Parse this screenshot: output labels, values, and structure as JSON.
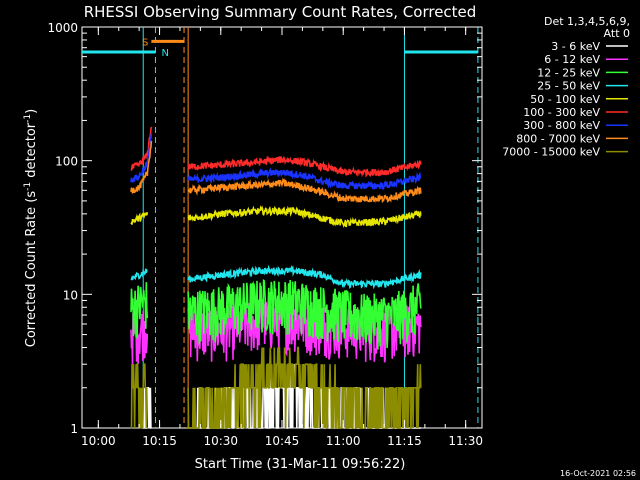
{
  "chart_data": {
    "type": "line",
    "title": "RHESSI Observing Summary Count Rates, Corrected",
    "xlabel": "Start Time (31-Mar-11 09:56:22)",
    "ylabel_main": "Corrected Count Rate (s",
    "ylabel_sup1": "-1",
    "ylabel_mid": " detector",
    "ylabel_sup2": "-1",
    "ylabel_end": ")",
    "yscale": "log",
    "ylim": [
      1,
      1000
    ],
    "xlim": [
      "09:56",
      "11:34"
    ],
    "x_ticks": [
      "10:00",
      "10:15",
      "10:30",
      "10:45",
      "11:00",
      "11:15",
      "11:30"
    ],
    "y_ticks": [
      "1",
      "10",
      "100",
      "1000"
    ],
    "legend_header": [
      "Det 1,3,4,5,6,9,",
      "Att 0"
    ],
    "legend_position": "right",
    "timestamp": "16-Oct-2021 02:56",
    "gaps": [
      [
        "10:14",
        "10:22"
      ],
      [
        "11:19",
        "11:30"
      ]
    ],
    "flags": [
      {
        "label": "S",
        "color": "#ff8c1a",
        "y": 780,
        "from": "10:13",
        "to": "10:21"
      },
      {
        "label": "N",
        "color": "#22e6ee",
        "y": 650,
        "from": "09:56",
        "to": "10:14"
      },
      {
        "label": "",
        "color": "#22e6ee",
        "y": 650,
        "from": "11:15",
        "to": "11:33"
      }
    ],
    "vlines": [
      {
        "t": "10:11",
        "color": "#22e6ee",
        "style": "solid"
      },
      {
        "t": "10:14",
        "color": "#22e6ee",
        "style": "dashed"
      },
      {
        "t": "10:21",
        "color": "#ff8c1a",
        "style": "dashed"
      },
      {
        "t": "10:22",
        "color": "#ff8c1a",
        "style": "solid"
      },
      {
        "t": "11:15",
        "color": "#22e6ee",
        "style": "solid"
      },
      {
        "t": "11:33",
        "color": "#22e6ee",
        "style": "dashed"
      }
    ],
    "series": [
      {
        "name": "3 - 6 keV",
        "color": "#ffffff",
        "seg1": [
          [
            "10:11",
            1
          ],
          [
            "10:12",
            1.5
          ],
          [
            "10:13",
            2
          ]
        ],
        "seg2": [
          [
            "10:22",
            1
          ],
          [
            "10:30",
            1.2
          ],
          [
            "10:35",
            1.5
          ],
          [
            "10:42",
            1.8
          ],
          [
            "10:50",
            1.8
          ],
          [
            "10:55",
            1.5
          ],
          [
            "11:00",
            1.3
          ],
          [
            "11:10",
            1.1
          ],
          [
            "11:19",
            1
          ]
        ]
      },
      {
        "name": "6 - 12 keV",
        "color": "#ff33ff",
        "seg1": [
          [
            "10:08",
            5
          ],
          [
            "10:10",
            5.5
          ],
          [
            "10:12",
            6
          ]
        ],
        "seg2": [
          [
            "10:22",
            5.5
          ],
          [
            "10:30",
            5.5
          ],
          [
            "10:40",
            6.5
          ],
          [
            "10:48",
            6.5
          ],
          [
            "10:55",
            6
          ],
          [
            "11:05",
            5.5
          ],
          [
            "11:12",
            5.5
          ],
          [
            "11:19",
            6
          ]
        ]
      },
      {
        "name": "12 - 25 keV",
        "color": "#33ff33",
        "seg1": [
          [
            "10:08",
            8
          ],
          [
            "10:10",
            8.5
          ],
          [
            "10:12",
            9
          ]
        ],
        "seg2": [
          [
            "10:22",
            7.5
          ],
          [
            "10:30",
            8
          ],
          [
            "10:40",
            9
          ],
          [
            "10:48",
            9
          ],
          [
            "10:55",
            8
          ],
          [
            "11:05",
            7
          ],
          [
            "11:12",
            7
          ],
          [
            "11:19",
            8.5
          ]
        ]
      },
      {
        "name": "25 - 50 keV",
        "color": "#22e6ee",
        "seg1": [
          [
            "10:08",
            13
          ],
          [
            "10:10",
            14
          ],
          [
            "10:12",
            15
          ]
        ],
        "seg2": [
          [
            "10:22",
            13
          ],
          [
            "10:30",
            14
          ],
          [
            "10:40",
            15
          ],
          [
            "10:48",
            15
          ],
          [
            "10:55",
            14
          ],
          [
            "11:00",
            12
          ],
          [
            "11:10",
            12
          ],
          [
            "11:19",
            14
          ]
        ]
      },
      {
        "name": "50 - 100 keV",
        "color": "#e6e600",
        "seg1": [
          [
            "10:08",
            35
          ],
          [
            "10:10",
            37
          ],
          [
            "10:12",
            40
          ]
        ],
        "seg2": [
          [
            "10:22",
            37
          ],
          [
            "10:30",
            40
          ],
          [
            "10:40",
            42
          ],
          [
            "10:48",
            42
          ],
          [
            "10:55",
            37
          ],
          [
            "11:00",
            34
          ],
          [
            "11:10",
            35
          ],
          [
            "11:19",
            40
          ]
        ]
      },
      {
        "name": "100 - 300 keV",
        "color": "#ff2a2a",
        "seg1": [
          [
            "10:08",
            88
          ],
          [
            "10:10",
            93
          ],
          [
            "10:12",
            110
          ],
          [
            "10:13",
            180
          ]
        ],
        "seg2": [
          [
            "10:22",
            90
          ],
          [
            "10:30",
            93
          ],
          [
            "10:40",
            98
          ],
          [
            "10:45",
            102
          ],
          [
            "10:50",
            98
          ],
          [
            "10:55",
            90
          ],
          [
            "11:00",
            82
          ],
          [
            "11:10",
            82
          ],
          [
            "11:19",
            95
          ]
        ]
      },
      {
        "name": "300 - 800 keV",
        "color": "#1a33ff",
        "seg1": [
          [
            "10:08",
            72
          ],
          [
            "10:10",
            76
          ],
          [
            "10:12",
            95
          ],
          [
            "10:13",
            160
          ]
        ],
        "seg2": [
          [
            "10:22",
            72
          ],
          [
            "10:30",
            75
          ],
          [
            "10:40",
            80
          ],
          [
            "10:45",
            82
          ],
          [
            "10:50",
            78
          ],
          [
            "10:55",
            70
          ],
          [
            "11:00",
            65
          ],
          [
            "11:10",
            65
          ],
          [
            "11:19",
            75
          ]
        ]
      },
      {
        "name": "800 - 7000 keV",
        "color": "#ff8c1a",
        "seg1": [
          [
            "10:08",
            60
          ],
          [
            "10:10",
            63
          ],
          [
            "10:12",
            80
          ],
          [
            "10:13",
            140
          ]
        ],
        "seg2": [
          [
            "10:22",
            60
          ],
          [
            "10:30",
            63
          ],
          [
            "10:40",
            66
          ],
          [
            "10:45",
            68
          ],
          [
            "10:50",
            64
          ],
          [
            "10:55",
            58
          ],
          [
            "11:00",
            52
          ],
          [
            "11:10",
            52
          ],
          [
            "11:19",
            60
          ]
        ]
      },
      {
        "name": "7000 - 15000 keV",
        "color": "#8c8c00",
        "seg1": [
          [
            "10:08",
            2
          ],
          [
            "10:10",
            2
          ],
          [
            "10:12",
            2
          ]
        ],
        "seg2": [
          [
            "10:22",
            1.2
          ],
          [
            "10:30",
            1.5
          ],
          [
            "10:35",
            2
          ],
          [
            "10:42",
            2.8
          ],
          [
            "10:50",
            2.5
          ],
          [
            "10:55",
            2
          ],
          [
            "11:00",
            1.6
          ],
          [
            "11:10",
            1.5
          ],
          [
            "11:19",
            2
          ]
        ]
      }
    ]
  }
}
